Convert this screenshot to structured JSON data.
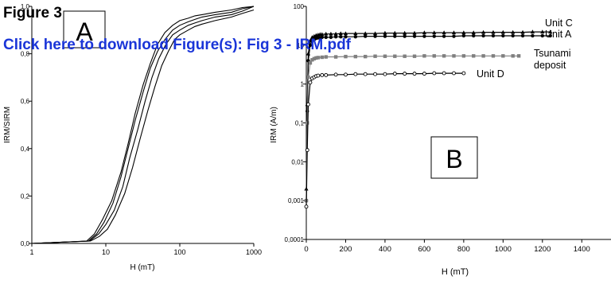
{
  "header": {
    "title": "Figure 3",
    "link_text": "Click here to download Figure(s): Fig 3 - IRM.pdf",
    "link_color": "#1a35d8"
  },
  "chart_data": [
    {
      "panel_label": "A",
      "type": "line",
      "title": "",
      "xlabel": "H (mT)",
      "ylabel": "IRM/SIRM",
      "xscale": "log",
      "xlim": [
        1,
        1000
      ],
      "ylim": [
        0,
        1.0
      ],
      "x_tick_labels": [
        "1",
        "10",
        "100",
        "1000"
      ],
      "y_tick_labels": [
        "0,0",
        "0,2",
        "0,4",
        "0,6",
        "0,8",
        "1,0"
      ],
      "grid": false,
      "legend": "none",
      "series": [
        {
          "x": [
            1,
            5.5,
            7,
            9,
            12,
            16,
            20,
            25,
            32,
            40,
            50,
            63,
            80,
            100,
            130,
            160,
            200,
            300,
            500,
            700,
            1000
          ],
          "y": [
            0,
            0.01,
            0.04,
            0.1,
            0.18,
            0.3,
            0.42,
            0.55,
            0.67,
            0.76,
            0.84,
            0.89,
            0.92,
            0.94,
            0.95,
            0.96,
            0.965,
            0.975,
            0.985,
            0.995,
            1.0
          ]
        },
        {
          "x": [
            1,
            5.8,
            7.5,
            9.5,
            12.5,
            16,
            20,
            25,
            32,
            40,
            50,
            63,
            80,
            100,
            130,
            160,
            200,
            300,
            500,
            700,
            1000
          ],
          "y": [
            0,
            0.01,
            0.04,
            0.09,
            0.17,
            0.28,
            0.4,
            0.52,
            0.64,
            0.74,
            0.81,
            0.86,
            0.9,
            0.92,
            0.935,
            0.945,
            0.955,
            0.965,
            0.975,
            0.99,
            1.0
          ]
        },
        {
          "x": [
            1,
            6,
            8,
            10,
            13,
            17,
            21,
            27,
            34,
            42,
            52,
            65,
            80,
            100,
            130,
            160,
            200,
            300,
            500,
            700,
            1000
          ],
          "y": [
            0,
            0.01,
            0.04,
            0.08,
            0.14,
            0.24,
            0.36,
            0.48,
            0.6,
            0.7,
            0.78,
            0.84,
            0.88,
            0.9,
            0.92,
            0.93,
            0.94,
            0.955,
            0.965,
            0.98,
            1.0
          ]
        },
        {
          "x": [
            1,
            6.2,
            8.2,
            10.5,
            13.5,
            18,
            23,
            29,
            37,
            46,
            57,
            70,
            85,
            100,
            130,
            160,
            200,
            300,
            500,
            700,
            1000
          ],
          "y": [
            0,
            0.01,
            0.03,
            0.06,
            0.12,
            0.21,
            0.32,
            0.44,
            0.56,
            0.66,
            0.75,
            0.81,
            0.86,
            0.88,
            0.9,
            0.915,
            0.925,
            0.94,
            0.955,
            0.97,
            0.985
          ]
        }
      ]
    },
    {
      "panel_label": "B",
      "type": "line",
      "title": "",
      "xlabel": "H (mT)",
      "ylabel": "IRM (A/m)",
      "yscale": "log",
      "xlim": [
        0,
        1500
      ],
      "ylim": [
        0.0001,
        100
      ],
      "x_tick_labels": [
        "0",
        "200",
        "400",
        "600",
        "800",
        "1000",
        "1200",
        "1400"
      ],
      "y_tick_labels": [
        "0,0001",
        "0,001",
        "0,01",
        "0,1",
        "1",
        "10",
        "100"
      ],
      "grid": false,
      "legend": "inline labels",
      "series": [
        {
          "name": "Unit C",
          "marker": "filled-triangle",
          "color": "#000000",
          "x": [
            0,
            5,
            10,
            20,
            30,
            40,
            50,
            60,
            70,
            80,
            100,
            125,
            150,
            175,
            200,
            250,
            300,
            350,
            400,
            450,
            500,
            550,
            600,
            650,
            700,
            750,
            800,
            850,
            900,
            950,
            1000,
            1050,
            1100,
            1150,
            1200,
            1240
          ],
          "y": [
            0.002,
            0.3,
            6,
            13,
            16,
            17,
            18,
            18.5,
            19,
            19,
            19.5,
            19.5,
            19.5,
            20,
            20,
            20,
            20,
            20,
            20.5,
            20.5,
            20.5,
            20.5,
            21,
            21,
            21,
            21,
            21,
            21,
            21.5,
            21.5,
            21.5,
            21.5,
            21.5,
            22,
            22,
            22
          ]
        },
        {
          "name": "Unit A",
          "marker": "filled-circle",
          "color": "#000000",
          "x": [
            0,
            5,
            10,
            20,
            30,
            40,
            50,
            60,
            70,
            80,
            100,
            125,
            150,
            175,
            200,
            250,
            300,
            350,
            400,
            450,
            500,
            550,
            600,
            650,
            700,
            750,
            800,
            850,
            900,
            950,
            1000,
            1050,
            1100,
            1150,
            1200,
            1240
          ],
          "y": [
            0.001,
            0.2,
            4,
            10,
            13,
            14,
            15,
            15.5,
            15.5,
            16,
            16,
            16,
            16.5,
            16.5,
            16.5,
            16.5,
            17,
            17,
            17,
            17,
            17,
            17,
            17,
            17,
            17,
            17,
            17.5,
            17.5,
            17.5,
            17.5,
            17.5,
            17.5,
            17.5,
            17.5,
            17.5,
            17.5
          ]
        },
        {
          "name": "Tsunami deposit",
          "marker": "filled-square",
          "color": "#808080",
          "x": [
            0,
            5,
            10,
            20,
            30,
            40,
            50,
            60,
            80,
            100,
            150,
            200,
            250,
            300,
            350,
            400,
            450,
            500,
            550,
            600,
            650,
            700,
            750,
            800,
            850,
            900,
            950,
            1000,
            1050,
            1080
          ],
          "y": [
            0.001,
            0.1,
            1.5,
            3.5,
            4.2,
            4.5,
            4.7,
            4.8,
            4.9,
            5,
            5,
            5.1,
            5.1,
            5.1,
            5.2,
            5.2,
            5.2,
            5.2,
            5.2,
            5.3,
            5.3,
            5.3,
            5.3,
            5.3,
            5.3,
            5.3,
            5.3,
            5.3,
            5.3,
            5.3
          ]
        },
        {
          "name": "Unit D",
          "marker": "open-circle",
          "color": "#000000",
          "x": [
            0,
            5,
            10,
            20,
            30,
            40,
            50,
            60,
            80,
            100,
            150,
            200,
            250,
            300,
            350,
            400,
            450,
            500,
            550,
            600,
            650,
            700,
            750,
            800
          ],
          "y": [
            0.0007,
            0.02,
            0.3,
            1.1,
            1.4,
            1.5,
            1.6,
            1.65,
            1.7,
            1.7,
            1.75,
            1.75,
            1.8,
            1.8,
            1.8,
            1.8,
            1.85,
            1.85,
            1.85,
            1.85,
            1.9,
            1.9,
            1.9,
            1.9
          ]
        }
      ],
      "labels": {
        "unit_c": "Unit C",
        "unit_a": "Unit A",
        "tsunami_1": "Tsunami",
        "tsunami_2": "deposit",
        "unit_d": "Unit D"
      }
    }
  ]
}
